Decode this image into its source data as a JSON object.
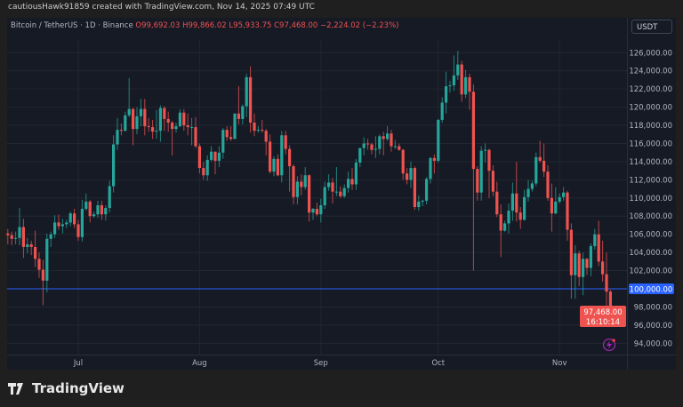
{
  "header": {
    "credit": "cautiousHawk91859 created with TradingView.com, Nov 14, 2025 07:49 UTC"
  },
  "legend": {
    "symbol": "Bitcoin / TetherUS · 1D · Binance",
    "open": "O99,692.03",
    "high": "H99,866.02",
    "low": "L95,933.75",
    "close": "C97,468.00",
    "change": "−2,224.02 (−2.23%)"
  },
  "currency_button": "USDT",
  "price_line_label": "100,000.00",
  "last_price_label": "97,468.00",
  "countdown": "16:10:14",
  "brand": "TradingView",
  "colors": {
    "up": "#26a69a",
    "down": "#ef5350",
    "price_line": "#2962ff",
    "background": "#161a25"
  },
  "icons": {
    "alert": "lightning-icon",
    "logo": "tradingview-logo-icon"
  },
  "chart_data": {
    "type": "candlestick",
    "title": "Bitcoin / TetherUS · 1D · Binance",
    "ylim": [
      93000,
      127500
    ],
    "y_ticks": [
      94000,
      96000,
      98000,
      100000,
      102000,
      104000,
      106000,
      108000,
      110000,
      112000,
      114000,
      116000,
      118000,
      120000,
      122000,
      124000,
      126000
    ],
    "y_tick_labels": [
      "94,000.00",
      "96,000.00",
      "98,000.00",
      "100,000.00",
      "102,000.00",
      "104,000.00",
      "106,000.00",
      "108,000.00",
      "110,000.00",
      "112,000.00",
      "114,000.00",
      "116,000.00",
      "118,000.00",
      "120,000.00",
      "122,000.00",
      "124,000.00",
      "126,000.00"
    ],
    "x_ticks": [
      {
        "date": "2025-07-01",
        "label": "Jul"
      },
      {
        "date": "2025-08-01",
        "label": "Aug"
      },
      {
        "date": "2025-09-01",
        "label": "Sep"
      },
      {
        "date": "2025-10-01",
        "label": "Oct"
      },
      {
        "date": "2025-11-01",
        "label": "Nov"
      }
    ],
    "horizontal_line": 100000,
    "grid": true,
    "candles_columns": [
      "date",
      "open",
      "high",
      "low",
      "close"
    ],
    "candles": [
      [
        "2025-06-13",
        106100,
        106600,
        104900,
        105900
      ],
      [
        "2025-06-14",
        105900,
        106300,
        104800,
        105500
      ],
      [
        "2025-06-15",
        105500,
        106300,
        104900,
        105600
      ],
      [
        "2025-06-16",
        105600,
        108900,
        104800,
        106800
      ],
      [
        "2025-06-17",
        106800,
        107700,
        103400,
        104600
      ],
      [
        "2025-06-18",
        104600,
        105600,
        103900,
        104900
      ],
      [
        "2025-06-19",
        104900,
        105300,
        103700,
        104600
      ],
      [
        "2025-06-20",
        104600,
        106400,
        102400,
        103300
      ],
      [
        "2025-06-21",
        103300,
        104000,
        101200,
        102100
      ],
      [
        "2025-06-22",
        102100,
        103200,
        98200,
        100900
      ],
      [
        "2025-06-23",
        100900,
        106100,
        99600,
        105500
      ],
      [
        "2025-06-24",
        105500,
        106300,
        104600,
        106000
      ],
      [
        "2025-06-25",
        106000,
        108100,
        105600,
        107300
      ],
      [
        "2025-06-26",
        107300,
        108200,
        106500,
        106900
      ],
      [
        "2025-06-27",
        106900,
        107700,
        106100,
        107100
      ],
      [
        "2025-06-28",
        107100,
        107600,
        106700,
        107300
      ],
      [
        "2025-06-29",
        107300,
        108500,
        106900,
        108300
      ],
      [
        "2025-06-30",
        108300,
        108800,
        106700,
        107100
      ],
      [
        "2025-07-01",
        107100,
        107600,
        105300,
        105700
      ],
      [
        "2025-07-02",
        105700,
        109800,
        105200,
        108800
      ],
      [
        "2025-07-03",
        108800,
        110500,
        108600,
        109600
      ],
      [
        "2025-07-04",
        109600,
        109800,
        107300,
        108000
      ],
      [
        "2025-07-05",
        108000,
        108500,
        107800,
        108200
      ],
      [
        "2025-07-06",
        108200,
        109700,
        107800,
        109200
      ],
      [
        "2025-07-07",
        109200,
        109700,
        107600,
        108200
      ],
      [
        "2025-07-08",
        108200,
        109200,
        107500,
        108900
      ],
      [
        "2025-07-09",
        108900,
        111900,
        108400,
        111300
      ],
      [
        "2025-07-10",
        111300,
        116900,
        110600,
        115900
      ],
      [
        "2025-07-11",
        115900,
        118800,
        115300,
        117500
      ],
      [
        "2025-07-12",
        117500,
        118200,
        116900,
        117400
      ],
      [
        "2025-07-13",
        117400,
        119500,
        117300,
        119100
      ],
      [
        "2025-07-14",
        119100,
        123200,
        118900,
        119800
      ],
      [
        "2025-07-15",
        119800,
        119900,
        115800,
        117600
      ],
      [
        "2025-07-16",
        117600,
        120000,
        117000,
        119000
      ],
      [
        "2025-07-17",
        119000,
        120900,
        117900,
        119800
      ],
      [
        "2025-07-18",
        119800,
        120900,
        116900,
        117900
      ],
      [
        "2025-07-19",
        117900,
        118800,
        117300,
        117800
      ],
      [
        "2025-07-20",
        117800,
        118600,
        116500,
        117300
      ],
      [
        "2025-07-21",
        117300,
        119700,
        116500,
        117400
      ],
      [
        "2025-07-22",
        117400,
        120200,
        116200,
        119900
      ],
      [
        "2025-07-23",
        119900,
        120100,
        117400,
        118700
      ],
      [
        "2025-07-24",
        118700,
        119500,
        117300,
        118300
      ],
      [
        "2025-07-25",
        118300,
        118500,
        114700,
        117600
      ],
      [
        "2025-07-26",
        117600,
        118300,
        117200,
        117900
      ],
      [
        "2025-07-27",
        117900,
        119800,
        117800,
        119400
      ],
      [
        "2025-07-28",
        119400,
        119800,
        117400,
        118000
      ],
      [
        "2025-07-29",
        118000,
        119300,
        116900,
        117800
      ],
      [
        "2025-07-30",
        117800,
        118800,
        115800,
        117800
      ],
      [
        "2025-07-31",
        117800,
        118900,
        115500,
        115700
      ],
      [
        "2025-08-01",
        115700,
        116000,
        112700,
        113300
      ],
      [
        "2025-08-02",
        113300,
        114000,
        112000,
        112500
      ],
      [
        "2025-08-03",
        112500,
        114700,
        111900,
        114200
      ],
      [
        "2025-08-04",
        114200,
        115700,
        114000,
        115100
      ],
      [
        "2025-08-05",
        115100,
        115100,
        112600,
        114100
      ],
      [
        "2025-08-06",
        114100,
        115700,
        113400,
        115000
      ],
      [
        "2025-08-07",
        115000,
        117700,
        114300,
        117500
      ],
      [
        "2025-08-08",
        117500,
        117900,
        116300,
        116700
      ],
      [
        "2025-08-09",
        116700,
        117900,
        116300,
        116500
      ],
      [
        "2025-08-10",
        116500,
        119300,
        116500,
        119300
      ],
      [
        "2025-08-11",
        119300,
        122300,
        118100,
        118700
      ],
      [
        "2025-08-12",
        118700,
        120300,
        118100,
        120100
      ],
      [
        "2025-08-13",
        120100,
        123700,
        118900,
        123300
      ],
      [
        "2025-08-14",
        123300,
        124500,
        117200,
        118300
      ],
      [
        "2025-08-15",
        118300,
        119300,
        116800,
        117400
      ],
      [
        "2025-08-16",
        117400,
        117900,
        117200,
        117500
      ],
      [
        "2025-08-17",
        117500,
        118600,
        117200,
        117400
      ],
      [
        "2025-08-18",
        117400,
        117600,
        114700,
        116200
      ],
      [
        "2025-08-19",
        116200,
        117000,
        112700,
        112900
      ],
      [
        "2025-08-20",
        112900,
        114600,
        112400,
        114300
      ],
      [
        "2025-08-21",
        114300,
        114800,
        112400,
        112500
      ],
      [
        "2025-08-22",
        112500,
        117400,
        111700,
        116900
      ],
      [
        "2025-08-23",
        116900,
        117400,
        114800,
        115400
      ],
      [
        "2025-08-24",
        115400,
        115800,
        110700,
        113500
      ],
      [
        "2025-08-25",
        113500,
        113700,
        109300,
        110100
      ],
      [
        "2025-08-26",
        110100,
        112400,
        109300,
        111800
      ],
      [
        "2025-08-27",
        111800,
        112600,
        110300,
        111200
      ],
      [
        "2025-08-28",
        111200,
        113400,
        110900,
        112500
      ],
      [
        "2025-08-29",
        112500,
        112600,
        107400,
        108400
      ],
      [
        "2025-08-30",
        108400,
        108900,
        107600,
        108800
      ],
      [
        "2025-08-31",
        108800,
        109500,
        108000,
        108200
      ],
      [
        "2025-09-01",
        108200,
        109900,
        107300,
        109200
      ],
      [
        "2025-09-02",
        109200,
        111800,
        108800,
        111200
      ],
      [
        "2025-09-03",
        111200,
        112600,
        110800,
        111700
      ],
      [
        "2025-09-04",
        111700,
        112200,
        109400,
        110700
      ],
      [
        "2025-09-05",
        110700,
        113400,
        110200,
        110700
      ],
      [
        "2025-09-06",
        110700,
        111300,
        110000,
        110200
      ],
      [
        "2025-09-07",
        110200,
        111500,
        110000,
        111100
      ],
      [
        "2025-09-08",
        111100,
        112900,
        110600,
        112100
      ],
      [
        "2025-09-09",
        112100,
        113300,
        110900,
        111500
      ],
      [
        "2025-09-10",
        111500,
        114300,
        110900,
        113900
      ],
      [
        "2025-09-11",
        113900,
        115500,
        113400,
        115500
      ],
      [
        "2025-09-12",
        115500,
        116700,
        114700,
        116000
      ],
      [
        "2025-09-13",
        116000,
        116500,
        115300,
        115900
      ],
      [
        "2025-09-14",
        115900,
        116100,
        114800,
        115300
      ],
      [
        "2025-09-15",
        115300,
        116800,
        114400,
        115400
      ],
      [
        "2025-09-16",
        115400,
        117000,
        114800,
        116800
      ],
      [
        "2025-09-17",
        116800,
        117300,
        114700,
        116500
      ],
      [
        "2025-09-18",
        116500,
        117900,
        116300,
        117100
      ],
      [
        "2025-09-19",
        117100,
        117500,
        115100,
        115700
      ],
      [
        "2025-09-20",
        115700,
        116400,
        115400,
        115700
      ],
      [
        "2025-09-21",
        115700,
        116000,
        115200,
        115300
      ],
      [
        "2025-09-22",
        115300,
        115400,
        112000,
        112700
      ],
      [
        "2025-09-23",
        112700,
        113300,
        111500,
        112000
      ],
      [
        "2025-09-24",
        112000,
        114000,
        111100,
        113300
      ],
      [
        "2025-09-25",
        113300,
        113500,
        108700,
        109000
      ],
      [
        "2025-09-26",
        109000,
        110300,
        108600,
        109600
      ],
      [
        "2025-09-27",
        109600,
        109800,
        109100,
        109700
      ],
      [
        "2025-09-28",
        109700,
        112300,
        109300,
        112100
      ],
      [
        "2025-09-29",
        112100,
        114500,
        111600,
        114400
      ],
      [
        "2025-09-30",
        114400,
        114800,
        112700,
        114100
      ],
      [
        "2025-10-01",
        114100,
        118700,
        113900,
        118600
      ],
      [
        "2025-10-02",
        118600,
        121100,
        118300,
        120500
      ],
      [
        "2025-10-03",
        120500,
        123900,
        119300,
        122300
      ],
      [
        "2025-10-04",
        122300,
        122900,
        121600,
        122400
      ],
      [
        "2025-10-05",
        122400,
        125700,
        121800,
        123500
      ],
      [
        "2025-10-06",
        123500,
        126200,
        123000,
        124700
      ],
      [
        "2025-10-07",
        124700,
        125100,
        120600,
        121400
      ],
      [
        "2025-10-08",
        121400,
        124100,
        121000,
        123300
      ],
      [
        "2025-10-09",
        123300,
        123700,
        119700,
        121700
      ],
      [
        "2025-10-10",
        121700,
        122500,
        102000,
        113200
      ],
      [
        "2025-10-11",
        113200,
        113500,
        109700,
        110600
      ],
      [
        "2025-10-12",
        110600,
        115700,
        109700,
        115200
      ],
      [
        "2025-10-13",
        115200,
        116000,
        113900,
        115300
      ],
      [
        "2025-10-14",
        115300,
        115400,
        110000,
        113000
      ],
      [
        "2025-10-15",
        113000,
        113600,
        110200,
        110700
      ],
      [
        "2025-10-16",
        110700,
        111800,
        107900,
        108200
      ],
      [
        "2025-10-17",
        108200,
        109300,
        103500,
        106400
      ],
      [
        "2025-10-18",
        106400,
        107500,
        106300,
        107200
      ],
      [
        "2025-10-19",
        107200,
        109400,
        106100,
        108600
      ],
      [
        "2025-10-20",
        108600,
        111700,
        107500,
        110500
      ],
      [
        "2025-10-21",
        110500,
        114000,
        107400,
        108400
      ],
      [
        "2025-10-22",
        108400,
        109000,
        106600,
        107600
      ],
      [
        "2025-10-23",
        107600,
        110900,
        107500,
        110100
      ],
      [
        "2025-10-24",
        110100,
        112000,
        109600,
        111000
      ],
      [
        "2025-10-25",
        111000,
        111900,
        110700,
        111600
      ],
      [
        "2025-10-26",
        111600,
        115000,
        111300,
        114500
      ],
      [
        "2025-10-27",
        114500,
        116300,
        113900,
        114100
      ],
      [
        "2025-10-28",
        114100,
        116000,
        112300,
        112900
      ],
      [
        "2025-10-29",
        112900,
        113600,
        109700,
        110000
      ],
      [
        "2025-10-30",
        110000,
        111600,
        106300,
        108300
      ],
      [
        "2025-10-31",
        108300,
        111200,
        108200,
        109600
      ],
      [
        "2025-11-01",
        109600,
        110500,
        109400,
        110100
      ],
      [
        "2025-11-02",
        110100,
        111200,
        109700,
        110600
      ],
      [
        "2025-11-03",
        110600,
        110800,
        105300,
        106500
      ],
      [
        "2025-11-04",
        106500,
        107200,
        98900,
        101500
      ],
      [
        "2025-11-05",
        101500,
        104800,
        98900,
        103900
      ],
      [
        "2025-11-06",
        103900,
        104200,
        100300,
        101300
      ],
      [
        "2025-11-07",
        101300,
        104000,
        99300,
        103300
      ],
      [
        "2025-11-08",
        103300,
        103400,
        101500,
        102300
      ],
      [
        "2025-11-09",
        102300,
        105000,
        101400,
        104700
      ],
      [
        "2025-11-10",
        104700,
        106600,
        104300,
        106000
      ],
      [
        "2025-11-11",
        106000,
        107500,
        102500,
        103000
      ],
      [
        "2025-11-12",
        103000,
        105300,
        100800,
        101600
      ],
      [
        "2025-11-13",
        101600,
        104000,
        98000,
        99692.03
      ],
      [
        "2025-11-14",
        99692.03,
        99866.02,
        95933.75,
        97468.0
      ]
    ]
  }
}
